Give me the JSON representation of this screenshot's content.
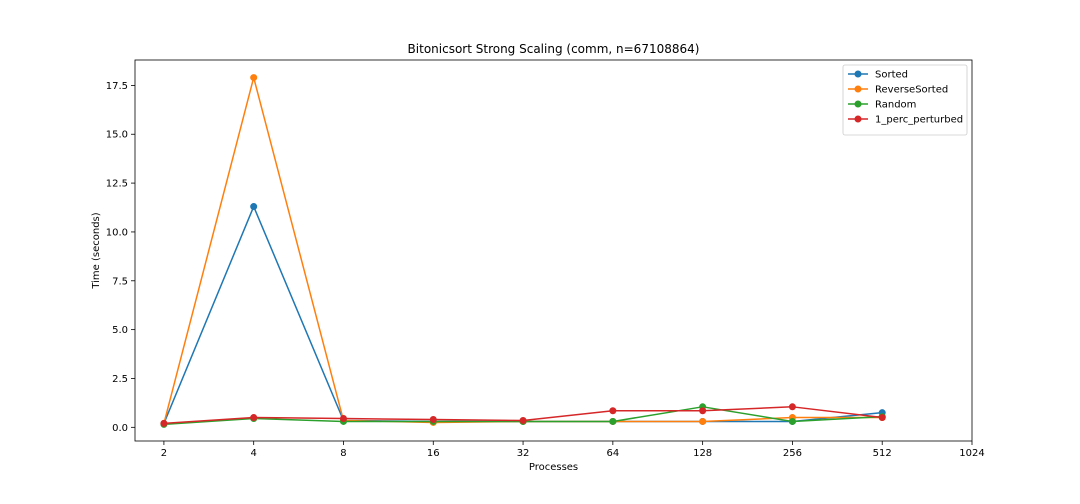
{
  "chart_data": {
    "type": "line",
    "title": "Bitonicsort Strong Scaling (comm, n=67108864)",
    "xlabel": "Processes",
    "ylabel": "Time (seconds)",
    "x_scale": "log2",
    "x_ticks": [
      2,
      4,
      8,
      16,
      32,
      64,
      128,
      256,
      512,
      1024
    ],
    "x_tick_labels": [
      "2",
      "4",
      "8",
      "16",
      "32",
      "64",
      "128",
      "256",
      "512",
      "1024"
    ],
    "y_ticks": [
      0.0,
      2.5,
      5.0,
      7.5,
      10.0,
      12.5,
      15.0,
      17.5
    ],
    "y_tick_labels": [
      "0.0",
      "2.5",
      "5.0",
      "7.5",
      "10.0",
      "12.5",
      "15.0",
      "17.5"
    ],
    "xlim": [
      1.6,
      1024
    ],
    "ylim": [
      -0.7,
      18.8
    ],
    "grid": false,
    "legend_position": "top-right",
    "series": [
      {
        "name": "Sorted",
        "color": "#1f77b4",
        "x": [
          2,
          4,
          8,
          16,
          32,
          64,
          128,
          256,
          512
        ],
        "y": [
          0.2,
          11.3,
          0.35,
          0.3,
          0.3,
          0.3,
          0.3,
          0.3,
          0.75
        ]
      },
      {
        "name": "ReverseSorted",
        "color": "#ff7f0e",
        "x": [
          2,
          4,
          8,
          16,
          32,
          64,
          128,
          256,
          512
        ],
        "y": [
          0.2,
          17.9,
          0.35,
          0.25,
          0.3,
          0.3,
          0.3,
          0.5,
          0.5
        ]
      },
      {
        "name": "Random",
        "color": "#2ca02c",
        "x": [
          2,
          4,
          8,
          16,
          32,
          64,
          128,
          256,
          512
        ],
        "y": [
          0.15,
          0.45,
          0.3,
          0.3,
          0.3,
          0.3,
          1.05,
          0.3,
          0.55
        ]
      },
      {
        "name": "1_perc_perturbed",
        "color": "#d62728",
        "x": [
          2,
          4,
          8,
          16,
          32,
          64,
          128,
          256,
          512
        ],
        "y": [
          0.2,
          0.5,
          0.45,
          0.4,
          0.35,
          0.85,
          0.85,
          1.05,
          0.5
        ]
      }
    ]
  }
}
